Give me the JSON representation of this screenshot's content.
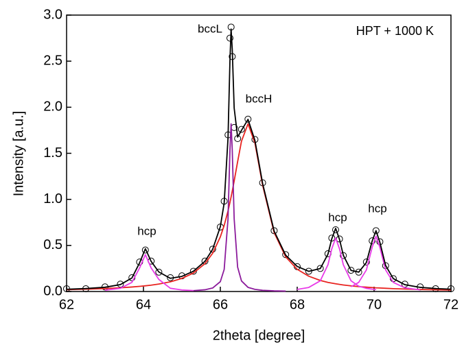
{
  "chart_data": {
    "type": "line",
    "inset_text": "HPT + 1000 K",
    "annotations": [
      "bccL",
      "bccH",
      "hcp",
      "hcp",
      "hcp"
    ],
    "x_label": "2theta [degree]",
    "y_label": "Intensity [a.u.]",
    "x": [
      62,
      62.5,
      63,
      63.4,
      63.7,
      63.9,
      64.05,
      64.2,
      64.4,
      64.7,
      65,
      65.3,
      65.6,
      65.8,
      66,
      66.1,
      66.2,
      66.25,
      66.28,
      66.31,
      66.36,
      66.45,
      66.55,
      66.72,
      66.9,
      67.1,
      67.4,
      67.7,
      68,
      68.3,
      68.6,
      68.8,
      68.9,
      69,
      69.1,
      69.2,
      69.4,
      69.6,
      69.8,
      69.95,
      70.05,
      70.15,
      70.3,
      70.5,
      70.8,
      71.2,
      71.6,
      72
    ],
    "series": [
      {
        "color": "#000000",
        "marker": "circle",
        "values": [
          0.03,
          0.03,
          0.05,
          0.08,
          0.15,
          0.32,
          0.45,
          0.33,
          0.21,
          0.15,
          0.17,
          0.22,
          0.33,
          0.46,
          0.7,
          0.98,
          1.7,
          2.75,
          2.87,
          2.55,
          1.78,
          1.66,
          1.76,
          1.87,
          1.65,
          1.18,
          0.66,
          0.4,
          0.27,
          0.22,
          0.25,
          0.41,
          0.58,
          0.67,
          0.57,
          0.39,
          0.23,
          0.21,
          0.32,
          0.55,
          0.66,
          0.54,
          0.28,
          0.14,
          0.08,
          0.05,
          0.03,
          0.03
        ]
      },
      {
        "color": "#e8231f",
        "values": [
          0.02,
          0.025,
          0.032,
          0.04,
          0.049,
          0.056,
          0.062,
          0.069,
          0.081,
          0.105,
          0.142,
          0.201,
          0.302,
          0.415,
          0.593,
          0.717,
          0.874,
          0.966,
          1.026,
          1.088,
          1.199,
          1.409,
          1.631,
          1.82,
          1.611,
          1.154,
          0.639,
          0.376,
          0.241,
          0.166,
          0.12,
          0.099,
          0.091,
          0.084,
          0.077,
          0.071,
          0.061,
          0.053,
          0.047,
          0.043,
          0.04,
          0.038,
          0.035,
          0.031,
          0.027,
          0.022,
          0.019,
          0.016
        ]
      },
      {
        "color": "#8b1a9b",
        "values": [
          null,
          null,
          null,
          null,
          null,
          null,
          null,
          null,
          null,
          null,
          null,
          0.009,
          0.019,
          0.038,
          0.107,
          0.239,
          0.789,
          1.537,
          1.82,
          1.537,
          0.789,
          0.264,
          0.115,
          0.045,
          0.023,
          0.013,
          0.007,
          0.004,
          null,
          null,
          null,
          null,
          null,
          null,
          null,
          null,
          null,
          null,
          null,
          null,
          null,
          null,
          null,
          null,
          null,
          null,
          null,
          null
        ]
      },
      {
        "color": "#e83ae8",
        "values": [
          null,
          null,
          0.014,
          0.035,
          0.099,
          0.256,
          0.4,
          0.256,
          0.131,
          0.035,
          0.017,
          0.01,
          null,
          null,
          null,
          null,
          null,
          null,
          null,
          null,
          null,
          null,
          null,
          null,
          null,
          null,
          null,
          null,
          null,
          null,
          null,
          null,
          null,
          null,
          null,
          null,
          null,
          null,
          null,
          null,
          null,
          null,
          null,
          null,
          null,
          null,
          null,
          null
        ]
      },
      {
        "color": "#e83ae8",
        "values": [
          null,
          null,
          null,
          null,
          null,
          null,
          null,
          null,
          null,
          null,
          null,
          null,
          null,
          null,
          null,
          null,
          null,
          null,
          null,
          null,
          null,
          null,
          null,
          null,
          null,
          null,
          null,
          null,
          0.022,
          0.044,
          0.116,
          0.29,
          0.464,
          0.58,
          0.464,
          0.29,
          0.116,
          0.058,
          0.034,
          0.025,
          0.02,
          null,
          null,
          null,
          null,
          null,
          null,
          null
        ]
      },
      {
        "color": "#e83ae8",
        "values": [
          null,
          null,
          null,
          null,
          null,
          null,
          null,
          null,
          null,
          null,
          null,
          null,
          null,
          null,
          null,
          null,
          null,
          null,
          null,
          null,
          null,
          null,
          null,
          null,
          null,
          null,
          null,
          null,
          null,
          null,
          null,
          null,
          null,
          null,
          null,
          null,
          0.052,
          0.099,
          0.234,
          0.48,
          0.6,
          0.48,
          0.234,
          0.099,
          0.04,
          0.018,
          null,
          null
        ]
      },
      {
        "color": "#000000",
        "values": [
          0.024,
          0.032,
          0.046,
          0.075,
          0.147,
          0.311,
          0.464,
          0.327,
          0.212,
          0.143,
          0.164,
          0.22,
          0.328,
          0.458,
          0.704,
          0.96,
          1.666,
          2.506,
          2.849,
          2.628,
          1.991,
          1.676,
          1.749,
          1.868,
          1.639,
          1.173,
          0.655,
          0.394,
          0.272,
          0.219,
          0.249,
          0.405,
          0.573,
          0.685,
          0.566,
          0.393,
          0.229,
          0.21,
          0.315,
          0.547,
          0.66,
          0.535,
          0.282,
          0.14,
          0.074,
          0.045,
          0.032,
          0.025
        ]
      }
    ],
    "xlim": [
      62,
      72
    ],
    "xticks": [
      62,
      64,
      66,
      68,
      70,
      72
    ],
    "ylim": [
      0,
      3
    ],
    "yticks": [
      {
        "value": 0,
        "label": "0.0"
      },
      {
        "value": 0.5,
        "label": "0.5"
      },
      {
        "value": 1,
        "label": "1.0"
      },
      {
        "value": 1.5,
        "label": "1.5"
      },
      {
        "value": 2,
        "label": "2.0"
      },
      {
        "value": 2.5,
        "label": "2.5"
      },
      {
        "value": 3,
        "label": "3.0"
      }
    ]
  }
}
